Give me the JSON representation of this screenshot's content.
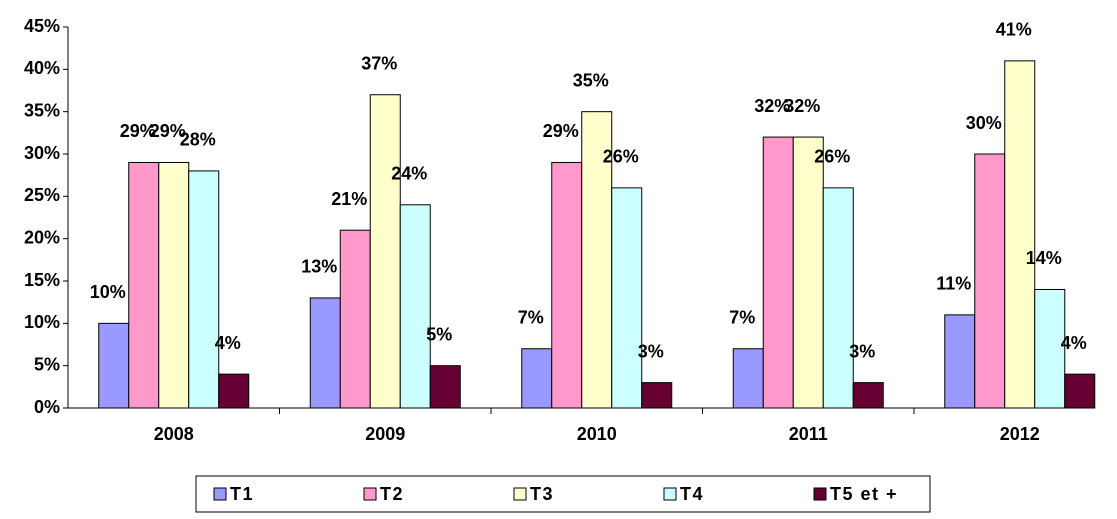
{
  "chart_data": {
    "type": "bar",
    "categories": [
      "2008",
      "2009",
      "2010",
      "2011",
      "2012"
    ],
    "series": [
      {
        "name": "T1",
        "color": "#9999ff",
        "values": [
          10,
          13,
          7,
          7,
          11
        ],
        "value_labels": [
          "10%",
          "13%",
          "7%",
          "7%",
          "11%"
        ]
      },
      {
        "name": "T2",
        "color": "#ff99cc",
        "values": [
          29,
          21,
          29,
          32,
          30
        ],
        "value_labels": [
          "29%",
          "21%",
          "29%",
          "32%",
          "30%"
        ]
      },
      {
        "name": "T3",
        "color": "#ffffcc",
        "values": [
          29,
          37,
          35,
          32,
          41
        ],
        "value_labels": [
          "29%",
          "37%",
          "35%",
          "32%",
          "41%"
        ]
      },
      {
        "name": "T4",
        "color": "#ccffff",
        "values": [
          28,
          24,
          26,
          26,
          14
        ],
        "value_labels": [
          "28%",
          "24%",
          "26%",
          "26%",
          "14%"
        ]
      },
      {
        "name": "T5 et +",
        "color": "#660033",
        "values": [
          4,
          5,
          3,
          3,
          4
        ],
        "value_labels": [
          "4%",
          "5%",
          "3%",
          "3%",
          "4%"
        ]
      }
    ],
    "ylim": [
      0,
      45
    ],
    "yticks": [
      {
        "value": 0,
        "label": "0%"
      },
      {
        "value": 5,
        "label": "5%"
      },
      {
        "value": 10,
        "label": "10%"
      },
      {
        "value": 15,
        "label": "15%"
      },
      {
        "value": 20,
        "label": "20%"
      },
      {
        "value": 25,
        "label": "25%"
      },
      {
        "value": 30,
        "label": "30%"
      },
      {
        "value": 35,
        "label": "35%"
      },
      {
        "value": 40,
        "label": "40%"
      },
      {
        "value": 45,
        "label": "45%"
      }
    ],
    "legend": "bottom"
  }
}
